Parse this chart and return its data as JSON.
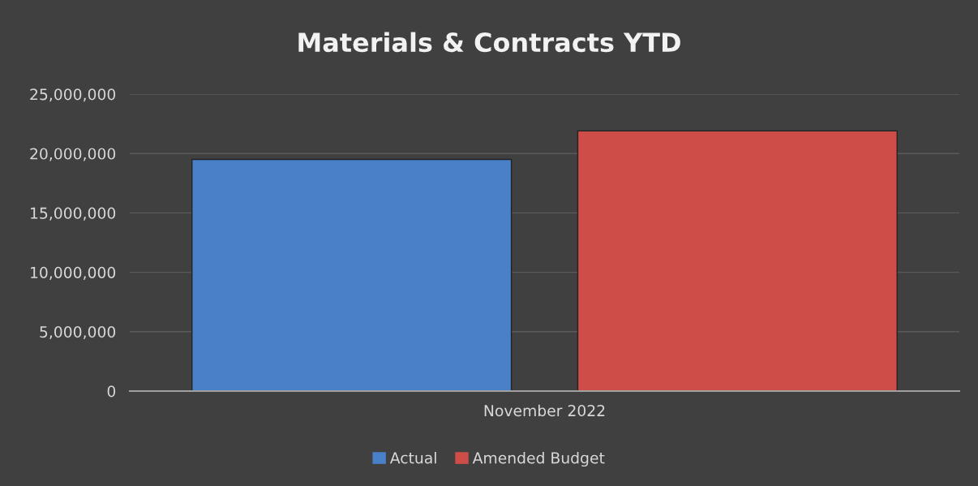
{
  "chart_data": {
    "type": "bar",
    "title": "Materials & Contracts YTD",
    "categories": [
      "November 2022"
    ],
    "series": [
      {
        "name": "Actual",
        "color": "#4a80c8",
        "values": [
          19500000
        ]
      },
      {
        "name": "Amended Budget",
        "color": "#cf4d48",
        "values": [
          21900000
        ]
      }
    ],
    "ylim": [
      0,
      25000000
    ],
    "yticks": [
      {
        "value": 0,
        "label": "0"
      },
      {
        "value": 5000000,
        "label": "5,000,000"
      },
      {
        "value": 10000000,
        "label": "10,000,000"
      },
      {
        "value": 15000000,
        "label": "15,000,000"
      },
      {
        "value": 20000000,
        "label": "20,000,000"
      },
      {
        "value": 25000000,
        "label": "25,000,000"
      }
    ],
    "grid": "y",
    "legend": "bottom"
  }
}
